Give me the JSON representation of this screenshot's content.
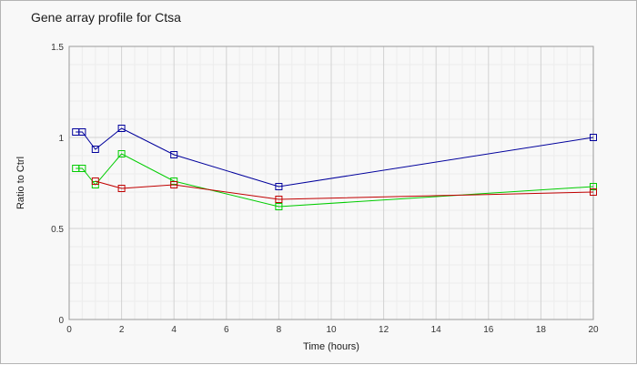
{
  "chart_data": {
    "type": "line",
    "title": "Gene array profile for Ctsa",
    "xlabel": "Time (hours)",
    "ylabel": "Ratio to Ctrl",
    "xlim": [
      0,
      20
    ],
    "ylim": [
      0,
      1.5
    ],
    "x_ticks": [
      "0",
      "2",
      "4",
      "6",
      "8",
      "10",
      "12",
      "14",
      "16",
      "18",
      "20"
    ],
    "y_ticks": [
      "0",
      "0.5",
      "1",
      "1.5"
    ],
    "grid": true,
    "legend": "none",
    "series": [
      {
        "color": "#00009c",
        "marker": "square",
        "points": [
          [
            0.25,
            1.03
          ],
          [
            0.5,
            1.03
          ],
          [
            1,
            0.935
          ],
          [
            2,
            1.05
          ],
          [
            4,
            0.905
          ],
          [
            8,
            0.73
          ],
          [
            20,
            1.0
          ]
        ]
      },
      {
        "color": "#00cc00",
        "marker": "square",
        "points": [
          [
            0.25,
            0.83
          ],
          [
            0.5,
            0.83
          ],
          [
            1,
            0.74
          ],
          [
            2,
            0.91
          ],
          [
            4,
            0.76
          ],
          [
            8,
            0.62
          ],
          [
            20,
            0.73
          ]
        ]
      },
      {
        "color": "#c00000",
        "marker": "square",
        "points": [
          [
            1,
            0.76
          ],
          [
            2,
            0.72
          ],
          [
            4,
            0.74
          ],
          [
            8,
            0.66
          ],
          [
            20,
            0.7
          ]
        ]
      }
    ]
  }
}
